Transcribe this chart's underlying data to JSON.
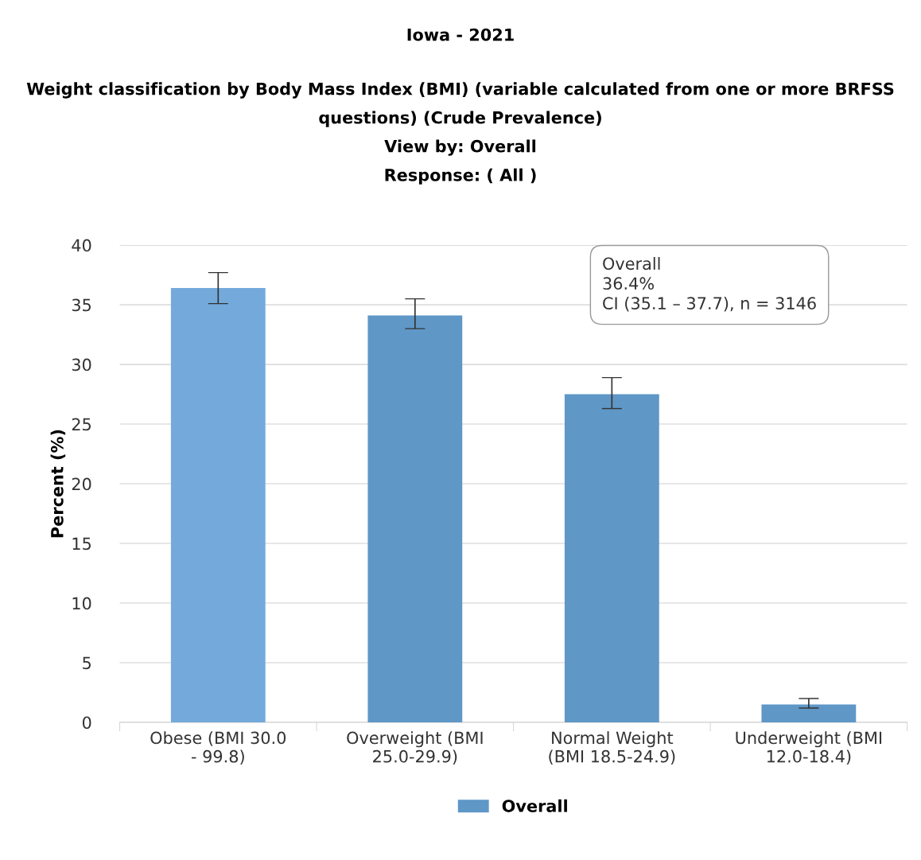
{
  "chart_data": {
    "type": "bar",
    "title": "Iowa - 2021",
    "subtitle": "Weight classification by Body Mass Index (BMI) (variable calculated from one or more BRFSS questions) (Crude Prevalence)\nView by: Overall\nResponse: ( All )",
    "ylabel": "Percent (%)",
    "categories": [
      "Obese (BMI 30.0\n- 99.8)",
      "Overweight (BMI\n25.0-29.9)",
      "Normal Weight\n(BMI 18.5-24.9)",
      "Underweight (BMI\n12.0-18.4)"
    ],
    "series": [
      {
        "name": "Overall",
        "color": "#5f97c7",
        "colors": [
          "#73aadb",
          "#5f97c7",
          "#5f97c7",
          "#5f97c7"
        ],
        "values": [
          36.4,
          34.1,
          27.5,
          1.5
        ],
        "errors": [
          [
            35.1,
            37.7
          ],
          [
            33.0,
            35.5
          ],
          [
            26.3,
            28.9
          ],
          [
            1.2,
            2.0
          ]
        ]
      }
    ],
    "annotations": [
      "Overall",
      "36.4%",
      "CI (35.1 – 37.7), n = 3146"
    ],
    "ylim": [
      0,
      40
    ],
    "yticks": [
      0,
      5,
      10,
      15,
      20,
      25,
      30,
      35,
      40
    ],
    "grid": "y",
    "legend": "bottom"
  }
}
